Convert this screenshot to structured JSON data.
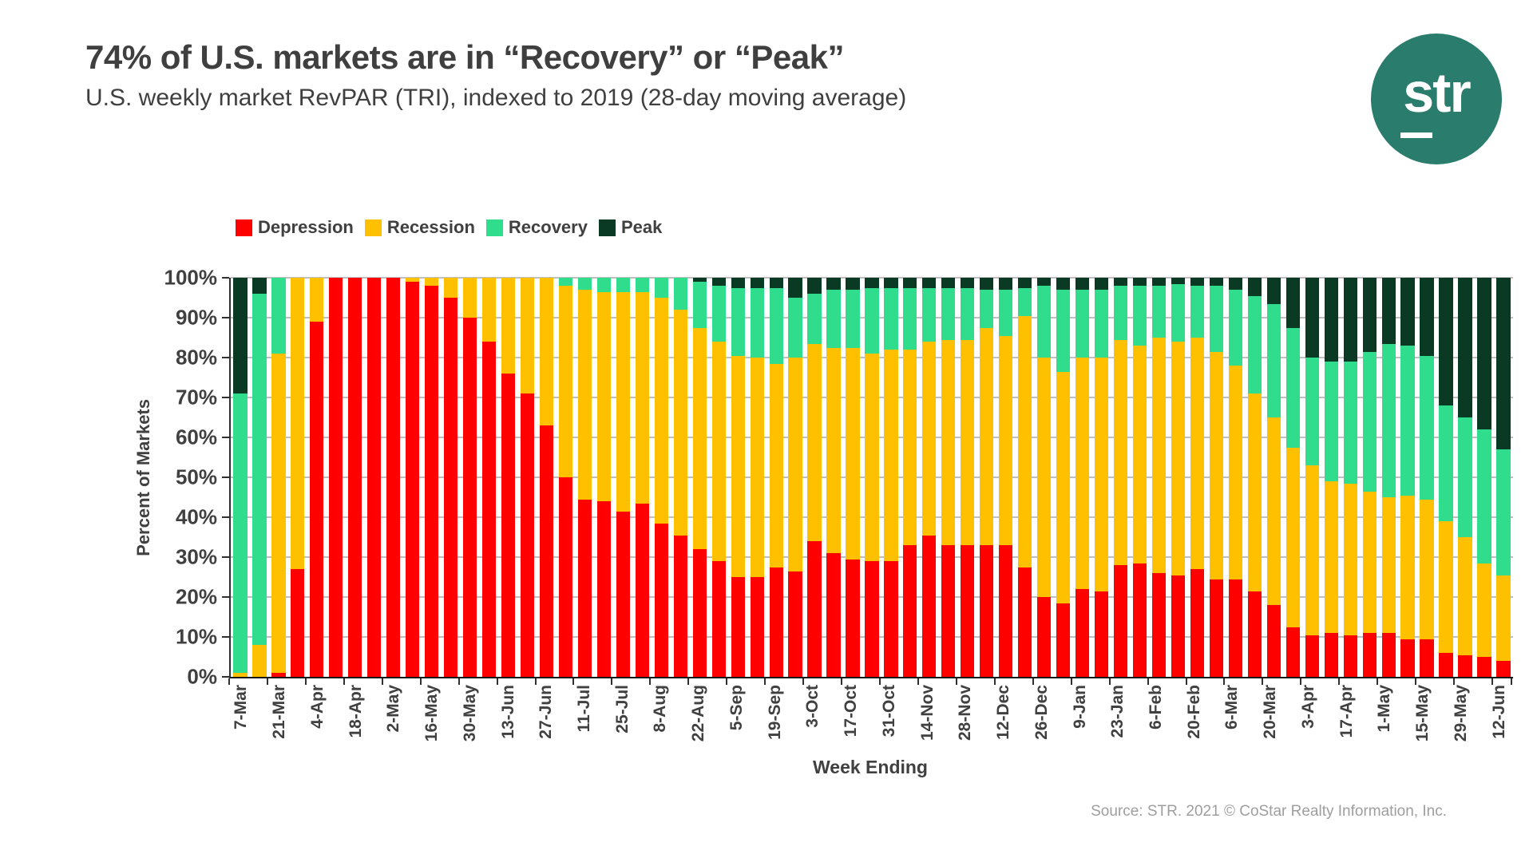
{
  "header": {
    "title": "74% of U.S. markets are in “Recovery” or “Peak”",
    "subtitle": "U.S. weekly market RevPAR (TRI), indexed to 2019 (28-day moving average)"
  },
  "logo": {
    "text": "str",
    "bg_color": "#2a7c6c"
  },
  "footer": {
    "source": "Source: STR. 2021 © CoStar Realty Information, Inc."
  },
  "chart_data": {
    "type": "bar",
    "stacked": true,
    "title": "74% of U.S. markets are in “Recovery” or “Peak”",
    "xlabel": "Week Ending",
    "ylabel": "Percent of Markets",
    "ylim": [
      0,
      100
    ],
    "yticks": [
      "0%",
      "10%",
      "20%",
      "30%",
      "40%",
      "50%",
      "60%",
      "70%",
      "80%",
      "90%",
      "100%"
    ],
    "grid": true,
    "legend_position": "top",
    "label_every": 2,
    "categories": [
      "7-Mar",
      "14-Mar",
      "21-Mar",
      "28-Mar",
      "4-Apr",
      "11-Apr",
      "18-Apr",
      "25-Apr",
      "2-May",
      "9-May",
      "16-May",
      "23-May",
      "30-May",
      "6-Jun",
      "13-Jun",
      "20-Jun",
      "27-Jun",
      "4-Jul",
      "11-Jul",
      "18-Jul",
      "25-Jul",
      "1-Aug",
      "8-Aug",
      "15-Aug",
      "22-Aug",
      "29-Aug",
      "5-Sep",
      "12-Sep",
      "19-Sep",
      "26-Sep",
      "3-Oct",
      "10-Oct",
      "17-Oct",
      "24-Oct",
      "31-Oct",
      "7-Nov",
      "14-Nov",
      "21-Nov",
      "28-Nov",
      "5-Dec",
      "12-Dec",
      "19-Dec",
      "26-Dec",
      "2-Jan",
      "9-Jan",
      "16-Jan",
      "23-Jan",
      "30-Jan",
      "6-Feb",
      "13-Feb",
      "20-Feb",
      "27-Feb",
      "6-Mar",
      "13-Mar",
      "20-Mar",
      "27-Mar",
      "3-Apr",
      "10-Apr",
      "17-Apr",
      "24-Apr",
      "1-May",
      "8-May",
      "15-May",
      "22-May",
      "29-May",
      "5-Jun",
      "12-Jun"
    ],
    "series": [
      {
        "name": "Depression",
        "color": "#ff0000",
        "values": [
          0,
          0,
          1,
          27,
          89,
          100,
          100,
          100,
          100,
          99,
          98,
          95,
          90,
          84,
          76,
          71,
          63,
          50,
          44.5,
          44,
          41.5,
          43.5,
          38.5,
          35.5,
          32,
          29,
          25,
          25,
          27.5,
          26.5,
          34,
          31,
          29.5,
          29,
          29,
          33,
          35.5,
          33,
          33,
          33,
          33,
          27.5,
          20,
          18.5,
          22,
          21.5,
          28,
          28.5,
          26,
          25.5,
          27,
          24.5,
          24.5,
          21.5,
          18,
          12.5,
          10.5,
          11,
          10.5,
          11,
          11,
          9.5,
          9.5,
          6,
          5.5,
          5,
          4
        ]
      },
      {
        "name": "Recession",
        "color": "#ffc000",
        "values": [
          1,
          8,
          80,
          73,
          11,
          0,
          0,
          0,
          0,
          1,
          2,
          5,
          10,
          16,
          24,
          29,
          37,
          48,
          52.5,
          52.5,
          55,
          53,
          56.5,
          56.5,
          55.5,
          55,
          55.5,
          55,
          51,
          53.5,
          49.5,
          51.5,
          53,
          52,
          53,
          49,
          48.5,
          51.5,
          51.5,
          54.5,
          52.5,
          63,
          60,
          58,
          58,
          58.5,
          56.5,
          54.5,
          59,
          58.5,
          58,
          57,
          53.5,
          49.5,
          47,
          45,
          42.5,
          38,
          38,
          35.5,
          34,
          36,
          35,
          33,
          29.5,
          23.5,
          21.5
        ]
      },
      {
        "name": "Recovery",
        "color": "#2fdd8c",
        "values": [
          70,
          88,
          19,
          0,
          0,
          0,
          0,
          0,
          0,
          0,
          0,
          0,
          0,
          0,
          0,
          0,
          0,
          2,
          3,
          3.5,
          3.5,
          3.5,
          5,
          8,
          11.5,
          14,
          17,
          17.5,
          19,
          15,
          12.5,
          14.5,
          14.5,
          16.5,
          15.5,
          15.5,
          13.5,
          13,
          13,
          9.5,
          11.5,
          7,
          18,
          20.5,
          17,
          17,
          13.5,
          15,
          13,
          14.5,
          13,
          16.5,
          19,
          24.5,
          28.5,
          30,
          27,
          30,
          30.5,
          35,
          38.5,
          37.5,
          36,
          29,
          30,
          33.5,
          31.5
        ]
      },
      {
        "name": "Peak",
        "color": "#0b3a24",
        "values": [
          29,
          4,
          0,
          0,
          0,
          0,
          0,
          0,
          0,
          0,
          0,
          0,
          0,
          0,
          0,
          0,
          0,
          0,
          0,
          0,
          0,
          0,
          0,
          0,
          1,
          2,
          2.5,
          2.5,
          2.5,
          5,
          4,
          3,
          3,
          2.5,
          2.5,
          2.5,
          2.5,
          2.5,
          2.5,
          3,
          3,
          2.5,
          2,
          3,
          3,
          3,
          2,
          2,
          2,
          1.5,
          2,
          2,
          3,
          4.5,
          6.5,
          12.5,
          20,
          21,
          21,
          18.5,
          16.5,
          17,
          19.5,
          32,
          35,
          38,
          43
        ]
      }
    ]
  }
}
